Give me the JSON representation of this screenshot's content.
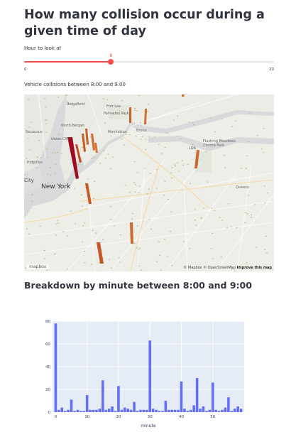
{
  "page": {
    "title": "How many collision occur during a given time of day",
    "slider_label": "Hour to look at",
    "slider_value": "8",
    "slider_min": "0",
    "slider_max": "23",
    "map_caption": "Vehicle collisions between 8:00 and 9:00",
    "subheader": "Breakdown by minute between 8:00 and 9:00"
  },
  "map": {
    "city_label": "New York",
    "place_labels": [
      "Secaucus",
      "Union City",
      "Hoboken",
      "North Bergen",
      "Ridgefield",
      "Fort Lee",
      "Palisades Park",
      "Manhattan",
      "Bronx",
      "LGA",
      "Flushing Meadows Corona Park",
      "Queens",
      "City"
    ],
    "logo": "mapbox",
    "attribution_mapbox": "© Mapbox",
    "attribution_osm": "© OpenStreetMap",
    "attribution_improve": "Improve this map"
  },
  "chart_data": {
    "type": "bar",
    "xlabel": "minute",
    "ylabel": "crashes",
    "x_ticks": [
      "0",
      "10",
      "20",
      "30",
      "40",
      "50"
    ],
    "y_ticks": [
      "0",
      "20",
      "40",
      "60",
      "80"
    ],
    "ylim": [
      0,
      80
    ],
    "xlim": [
      -1,
      60
    ],
    "color": "#636efa",
    "x": [
      0,
      1,
      2,
      3,
      4,
      5,
      6,
      7,
      8,
      9,
      10,
      11,
      12,
      13,
      14,
      15,
      16,
      17,
      18,
      19,
      20,
      21,
      22,
      23,
      24,
      25,
      26,
      27,
      28,
      29,
      30,
      31,
      32,
      33,
      34,
      35,
      36,
      37,
      38,
      39,
      40,
      41,
      42,
      43,
      44,
      45,
      46,
      47,
      48,
      49,
      50,
      51,
      52,
      53,
      54,
      55,
      56,
      57,
      58,
      59
    ],
    "values": [
      78,
      2,
      4,
      1,
      2,
      11,
      1,
      2,
      1,
      1,
      15,
      2,
      2,
      2,
      3,
      28,
      2,
      3,
      5,
      1,
      23,
      2,
      4,
      3,
      2,
      9,
      1,
      2,
      2,
      2,
      63,
      3,
      2,
      1,
      1,
      10,
      2,
      2,
      2,
      2,
      27,
      3,
      1,
      2,
      6,
      30,
      3,
      5,
      1,
      2,
      26,
      2,
      1,
      2,
      4,
      13,
      1,
      3,
      5,
      3
    ]
  }
}
